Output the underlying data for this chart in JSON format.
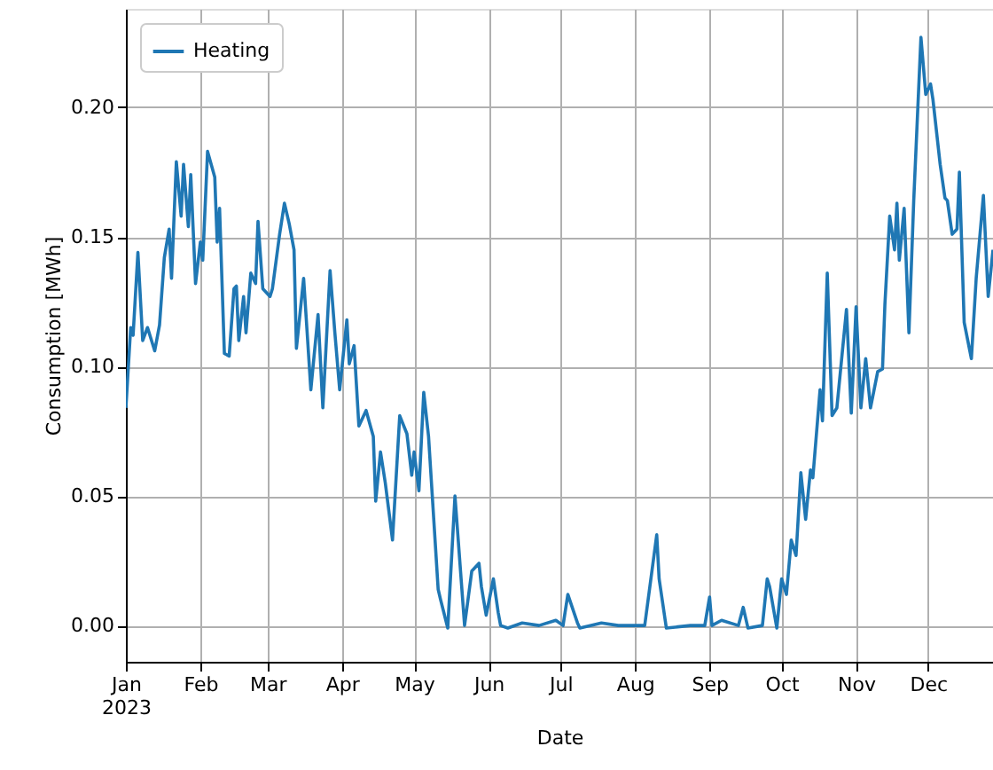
{
  "chart_data": {
    "type": "line",
    "xlabel": "Date",
    "ylabel": "Consumption [MWh]",
    "x": [
      "2023-01-01",
      "2023-01-03",
      "2023-01-04",
      "2023-01-06",
      "2023-01-08",
      "2023-01-10",
      "2023-01-13",
      "2023-01-15",
      "2023-01-17",
      "2023-01-19",
      "2023-01-20",
      "2023-01-22",
      "2023-01-24",
      "2023-01-25",
      "2023-01-27",
      "2023-01-28",
      "2023-01-30",
      "2023-02-01",
      "2023-02-02",
      "2023-02-04",
      "2023-02-07",
      "2023-02-08",
      "2023-02-09",
      "2023-02-11",
      "2023-02-13",
      "2023-02-15",
      "2023-02-16",
      "2023-02-17",
      "2023-02-19",
      "2023-02-20",
      "2023-02-22",
      "2023-02-24",
      "2023-02-25",
      "2023-02-27",
      "2023-03-02",
      "2023-03-03",
      "2023-03-06",
      "2023-03-08",
      "2023-03-10",
      "2023-03-12",
      "2023-03-13",
      "2023-03-16",
      "2023-03-19",
      "2023-03-22",
      "2023-03-24",
      "2023-03-27",
      "2023-03-29",
      "2023-03-31",
      "2023-04-03",
      "2023-04-04",
      "2023-04-06",
      "2023-04-08",
      "2023-04-11",
      "2023-04-14",
      "2023-04-15",
      "2023-04-17",
      "2023-04-19",
      "2023-04-22",
      "2023-04-25",
      "2023-04-28",
      "2023-04-30",
      "2023-05-01",
      "2023-05-03",
      "2023-05-05",
      "2023-05-07",
      "2023-05-11",
      "2023-05-12",
      "2023-05-15",
      "2023-05-18",
      "2023-05-22",
      "2023-05-25",
      "2023-05-28",
      "2023-05-29",
      "2023-05-31",
      "2023-06-03",
      "2023-06-05",
      "2023-06-06",
      "2023-06-09",
      "2023-06-15",
      "2023-06-22",
      "2023-06-29",
      "2023-07-02",
      "2023-07-04",
      "2023-07-08",
      "2023-07-09",
      "2023-07-18",
      "2023-07-25",
      "2023-07-30",
      "2023-08-05",
      "2023-08-08",
      "2023-08-10",
      "2023-08-11",
      "2023-08-14",
      "2023-08-24",
      "2023-08-30",
      "2023-09-01",
      "2023-09-02",
      "2023-09-06",
      "2023-09-13",
      "2023-09-15",
      "2023-09-17",
      "2023-09-23",
      "2023-09-25",
      "2023-09-26",
      "2023-09-29",
      "2023-10-01",
      "2023-10-03",
      "2023-10-05",
      "2023-10-07",
      "2023-10-09",
      "2023-10-11",
      "2023-10-13",
      "2023-10-14",
      "2023-10-17",
      "2023-10-18",
      "2023-10-20",
      "2023-10-22",
      "2023-10-24",
      "2023-10-28",
      "2023-10-30",
      "2023-11-01",
      "2023-11-03",
      "2023-11-05",
      "2023-11-07",
      "2023-11-10",
      "2023-11-12",
      "2023-11-13",
      "2023-11-15",
      "2023-11-17",
      "2023-11-18",
      "2023-11-19",
      "2023-11-21",
      "2023-11-23",
      "2023-11-25",
      "2023-11-28",
      "2023-11-30",
      "2023-12-02",
      "2023-12-03",
      "2023-12-06",
      "2023-12-08",
      "2023-12-09",
      "2023-12-11",
      "2023-12-13",
      "2023-12-14",
      "2023-12-16",
      "2023-12-19",
      "2023-12-21",
      "2023-12-24",
      "2023-12-26",
      "2023-12-28"
    ],
    "series": [
      {
        "name": "Heating",
        "color": "#1f77b4",
        "values": [
          0.084,
          0.115,
          0.112,
          0.144,
          0.11,
          0.115,
          0.106,
          0.116,
          0.142,
          0.153,
          0.134,
          0.179,
          0.158,
          0.178,
          0.154,
          0.174,
          0.132,
          0.148,
          0.141,
          0.183,
          0.173,
          0.148,
          0.161,
          0.105,
          0.104,
          0.13,
          0.131,
          0.11,
          0.127,
          0.113,
          0.136,
          0.132,
          0.156,
          0.13,
          0.127,
          0.13,
          0.151,
          0.163,
          0.155,
          0.145,
          0.107,
          0.134,
          0.091,
          0.12,
          0.084,
          0.137,
          0.113,
          0.091,
          0.118,
          0.101,
          0.108,
          0.077,
          0.083,
          0.073,
          0.048,
          0.067,
          0.055,
          0.033,
          0.081,
          0.074,
          0.058,
          0.067,
          0.052,
          0.09,
          0.073,
          0.014,
          0.01,
          -0.001,
          0.05,
          0.0,
          0.021,
          0.024,
          0.015,
          0.004,
          0.018,
          0.005,
          0.0,
          -0.001,
          0.001,
          0.0,
          0.002,
          0.0,
          0.012,
          0.001,
          -0.001,
          0.001,
          0.0,
          0.0,
          0.0,
          0.021,
          0.035,
          0.018,
          -0.001,
          0.0,
          0.0,
          0.011,
          0.0,
          0.002,
          0.0,
          0.007,
          -0.001,
          0.0,
          0.018,
          0.015,
          -0.001,
          0.018,
          0.012,
          0.033,
          0.027,
          0.059,
          0.041,
          0.06,
          0.057,
          0.091,
          0.079,
          0.136,
          0.081,
          0.084,
          0.122,
          0.082,
          0.123,
          0.084,
          0.103,
          0.084,
          0.098,
          0.099,
          0.124,
          0.158,
          0.145,
          0.163,
          0.141,
          0.161,
          0.113,
          0.164,
          0.227,
          0.205,
          0.209,
          0.203,
          0.178,
          0.165,
          0.164,
          0.151,
          0.153,
          0.175,
          0.117,
          0.103,
          0.134,
          0.166,
          0.127,
          0.145
        ]
      }
    ],
    "xlim": [
      "2023-01-01",
      "2023-12-28"
    ],
    "xticks": [
      {
        "value": "2023-01-01",
        "label": "Jan\n2023"
      },
      {
        "value": "2023-02-01",
        "label": "Feb"
      },
      {
        "value": "2023-03-01",
        "label": "Mar"
      },
      {
        "value": "2023-04-01",
        "label": "Apr"
      },
      {
        "value": "2023-05-01",
        "label": "May"
      },
      {
        "value": "2023-06-01",
        "label": "Jun"
      },
      {
        "value": "2023-07-01",
        "label": "Jul"
      },
      {
        "value": "2023-08-01",
        "label": "Aug"
      },
      {
        "value": "2023-09-01",
        "label": "Sep"
      },
      {
        "value": "2023-10-01",
        "label": "Oct"
      },
      {
        "value": "2023-11-01",
        "label": "Nov"
      },
      {
        "value": "2023-12-01",
        "label": "Dec"
      }
    ],
    "ylim": [
      -0.014,
      0.238
    ],
    "yticks": [
      {
        "value": 0,
        "label": "0.00"
      },
      {
        "value": 0.05,
        "label": "0.05"
      },
      {
        "value": 0.1,
        "label": "0.10"
      },
      {
        "value": 0.15,
        "label": "0.15"
      },
      {
        "value": 0.2,
        "label": "0.20"
      }
    ],
    "grid": true,
    "legend": "top left",
    "marker": "none",
    "line_style": "solid"
  }
}
